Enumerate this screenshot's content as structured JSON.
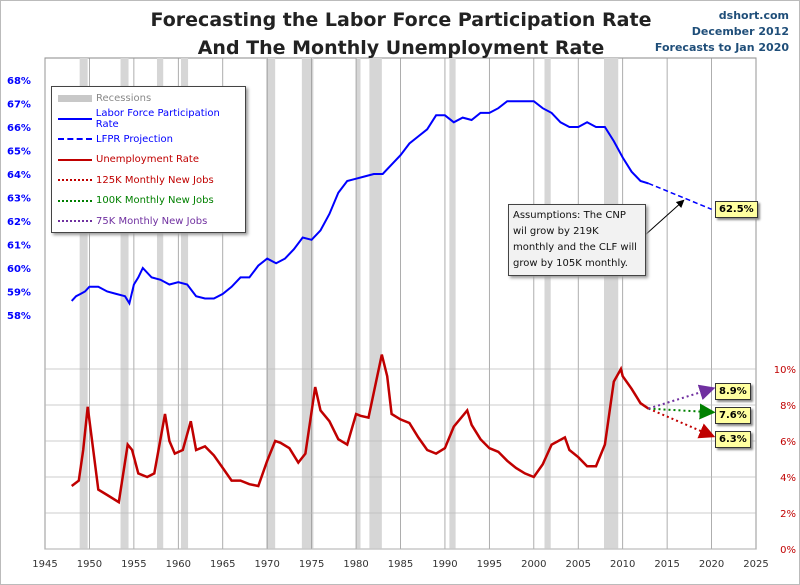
{
  "header": {
    "title1": "Forecasting the Labor Force Participation Rate",
    "title2": "And The Monthly Unemployment Rate",
    "source": "dshort.com",
    "date": "December 2012",
    "forecast": "Forecasts to Jan 2020"
  },
  "legend": {
    "items": [
      {
        "label": "Recessions",
        "color": "#c8c8c8",
        "style": "band"
      },
      {
        "label": "Labor Force Participation Rate",
        "color": "#0000ff",
        "style": "solid"
      },
      {
        "label": "LFPR Projection",
        "color": "#0000ff",
        "style": "dashed"
      },
      {
        "label": "Unemployment Rate",
        "color": "#c00000",
        "style": "solid"
      },
      {
        "label": "125K Monthly New Jobs",
        "color": "#c00000",
        "style": "dotted-arrow"
      },
      {
        "label": "100K Monthly New Jobs",
        "color": "#008000",
        "style": "dotted-arrow"
      },
      {
        "label": "75K Monthly New Jobs",
        "color": "#7030a0",
        "style": "dotted-arrow"
      }
    ]
  },
  "annotation": "Assumptions: The CNP wil grow by 219K monthly and the CLF will grow by 105K monthly.",
  "chart_data": {
    "type": "line",
    "x_ticks": [
      "1945",
      "1950",
      "1955",
      "1960",
      "1965",
      "1970",
      "1975",
      "1980",
      "1985",
      "1990",
      "1995",
      "2000",
      "2005",
      "2010",
      "2015",
      "2020",
      "2025"
    ],
    "xlim": [
      1945,
      2025
    ],
    "left_axis": {
      "ticks": [
        "58%",
        "59%",
        "60%",
        "61%",
        "62%",
        "63%",
        "64%",
        "65%",
        "66%",
        "67%",
        "68%"
      ],
      "ylim": [
        58,
        68
      ]
    },
    "right_axis": {
      "ticks": [
        "0%",
        "2%",
        "4%",
        "6%",
        "8%",
        "10%"
      ],
      "ylim": [
        0,
        10
      ]
    },
    "recessions": [
      [
        1948.9,
        1949.8
      ],
      [
        1953.5,
        1954.4
      ],
      [
        1957.6,
        1958.3
      ],
      [
        1960.3,
        1961.1
      ],
      [
        1969.9,
        1970.9
      ],
      [
        1973.9,
        1975.2
      ],
      [
        1980.0,
        1980.5
      ],
      [
        1981.5,
        1982.9
      ],
      [
        1990.5,
        1991.2
      ],
      [
        2001.2,
        2001.9
      ],
      [
        2007.9,
        2009.5
      ]
    ],
    "lfpr": {
      "name": "Labor Force Participation Rate",
      "x": [
        1948,
        1948.5,
        1949,
        1949.5,
        1950,
        1951,
        1952,
        1953,
        1954,
        1954.5,
        1955,
        1955.5,
        1956,
        1957,
        1958,
        1959,
        1960,
        1961,
        1962,
        1963,
        1964,
        1965,
        1966,
        1967,
        1968,
        1969,
        1970,
        1971,
        1972,
        1973,
        1974,
        1975,
        1976,
        1977,
        1978,
        1979,
        1980,
        1981,
        1982,
        1983,
        1984,
        1985,
        1986,
        1987,
        1988,
        1989,
        1990,
        1991,
        1992,
        1993,
        1994,
        1995,
        1996,
        1997,
        1998,
        1999,
        2000,
        2001,
        2002,
        2003,
        2004,
        2005,
        2006,
        2007,
        2008,
        2009,
        2010,
        2011,
        2012,
        2012.9
      ],
      "y": [
        58.6,
        58.8,
        58.9,
        59.0,
        59.2,
        59.2,
        59.0,
        58.9,
        58.8,
        58.5,
        59.3,
        59.6,
        60.0,
        59.6,
        59.5,
        59.3,
        59.4,
        59.3,
        58.8,
        58.7,
        58.7,
        58.9,
        59.2,
        59.6,
        59.6,
        60.1,
        60.4,
        60.2,
        60.4,
        60.8,
        61.3,
        61.2,
        61.6,
        62.3,
        63.2,
        63.7,
        63.8,
        63.9,
        64.0,
        64.0,
        64.4,
        64.8,
        65.3,
        65.6,
        65.9,
        66.5,
        66.5,
        66.2,
        66.4,
        66.3,
        66.6,
        66.6,
        66.8,
        67.1,
        67.1,
        67.1,
        67.1,
        66.8,
        66.6,
        66.2,
        66.0,
        66.0,
        66.2,
        66.0,
        66.0,
        65.4,
        64.7,
        64.1,
        63.7,
        63.6
      ]
    },
    "lfpr_projection": {
      "name": "LFPR Projection",
      "x": [
        2012.9,
        2020
      ],
      "y": [
        63.6,
        62.5
      ],
      "label": "62.5%"
    },
    "unemployment": {
      "name": "Unemployment Rate",
      "x": [
        1948,
        1948.8,
        1949.3,
        1949.8,
        1950.3,
        1951,
        1952,
        1953.3,
        1954.3,
        1954.8,
        1955.5,
        1956.5,
        1957.3,
        1958.5,
        1959,
        1959.6,
        1960.5,
        1961.4,
        1962,
        1963,
        1964,
        1965,
        1966,
        1967,
        1968,
        1969,
        1970,
        1970.9,
        1971.5,
        1972.5,
        1973.5,
        1974.3,
        1975.4,
        1976,
        1977,
        1978,
        1979,
        1980,
        1980.5,
        1981.4,
        1982.9,
        1983.5,
        1984,
        1985,
        1986,
        1987,
        1988,
        1989,
        1990,
        1991,
        1992.5,
        1993,
        1994,
        1995,
        1996,
        1997,
        1998,
        1999,
        2000,
        2001,
        2002,
        2003.5,
        2004,
        2005,
        2006,
        2007,
        2008,
        2009,
        2009.8,
        2010,
        2011,
        2012,
        2012.9
      ],
      "y": [
        3.5,
        3.8,
        5.5,
        7.9,
        6.0,
        3.3,
        3.0,
        2.6,
        5.8,
        5.5,
        4.2,
        4.0,
        4.2,
        7.5,
        6.0,
        5.3,
        5.5,
        7.1,
        5.5,
        5.7,
        5.2,
        4.5,
        3.8,
        3.8,
        3.6,
        3.5,
        4.9,
        6.0,
        5.9,
        5.6,
        4.8,
        5.3,
        9.0,
        7.7,
        7.1,
        6.1,
        5.8,
        7.5,
        7.4,
        7.3,
        10.8,
        9.6,
        7.5,
        7.2,
        7.0,
        6.2,
        5.5,
        5.3,
        5.6,
        6.8,
        7.7,
        6.9,
        6.1,
        5.6,
        5.4,
        4.9,
        4.5,
        4.2,
        4.0,
        4.7,
        5.8,
        6.2,
        5.5,
        5.1,
        4.6,
        4.6,
        5.8,
        9.3,
        10.0,
        9.6,
        8.9,
        8.1,
        7.8
      ]
    },
    "projections": [
      {
        "name": "125K Monthly New Jobs",
        "x": [
          2012.9,
          2020
        ],
        "y": [
          7.8,
          6.3
        ],
        "label": "6.3%",
        "color": "#c00000"
      },
      {
        "name": "100K Monthly New Jobs",
        "x": [
          2012.9,
          2020
        ],
        "y": [
          7.8,
          7.6
        ],
        "label": "7.6%",
        "color": "#008000"
      },
      {
        "name": "75K Monthly New Jobs",
        "x": [
          2012.9,
          2020
        ],
        "y": [
          7.8,
          8.9
        ],
        "label": "8.9%",
        "color": "#7030a0"
      }
    ],
    "grid": true,
    "legend_position": "top-left"
  }
}
